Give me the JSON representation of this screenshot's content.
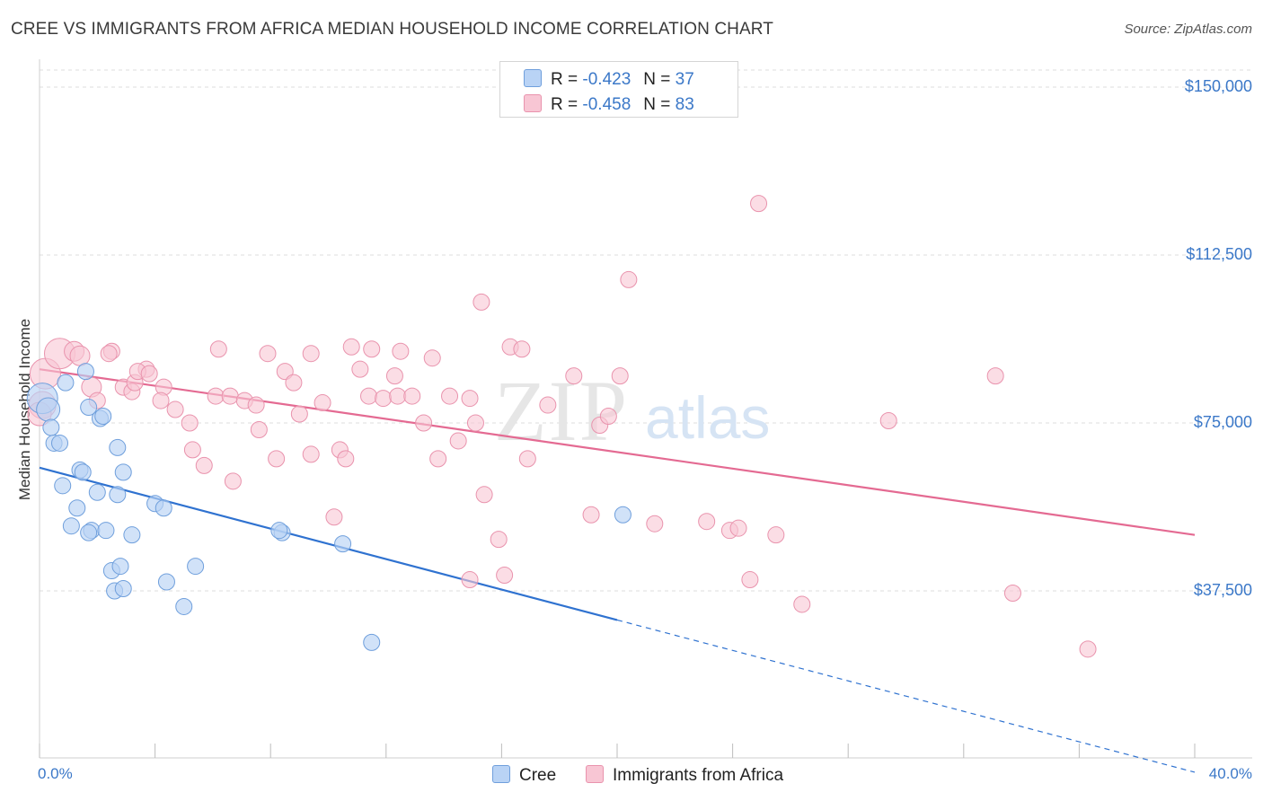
{
  "header": {
    "title": "CREE VS IMMIGRANTS FROM AFRICA MEDIAN HOUSEHOLD INCOME CORRELATION CHART",
    "source": "Source: ZipAtlas.com"
  },
  "legend": {
    "rows": [
      {
        "r_label": "R =",
        "r_value": "-0.423",
        "n_label": "N =",
        "n_value": "37"
      },
      {
        "r_label": "R =",
        "r_value": "-0.458",
        "n_label": "N =",
        "n_value": "83"
      }
    ],
    "bottom": [
      "Cree",
      "Immigrants from Africa"
    ]
  },
  "watermark": {
    "zip": "ZIP",
    "atlas": "atlas"
  },
  "colors": {
    "cree_fill": "#b9d3f5",
    "cree_stroke": "#6f9fdc",
    "cree_line": "#2f72d0",
    "africa_fill": "#f8c6d4",
    "africa_stroke": "#e993ad",
    "africa_line": "#e46a92",
    "axis_text": "#3b78c8",
    "grid": "#dedede"
  },
  "chart_data": {
    "type": "scatter",
    "title": "CREE VS IMMIGRANTS FROM AFRICA MEDIAN HOUSEHOLD INCOME CORRELATION CHART",
    "xlabel": "",
    "ylabel": "Median Household Income",
    "xlim": [
      0,
      40
    ],
    "ylim": [
      0,
      150000
    ],
    "x_tick_labels": [
      "0.0%",
      "40.0%"
    ],
    "y_ticks": [
      37500,
      75000,
      112500,
      150000
    ],
    "y_tick_labels": [
      "$37,500",
      "$75,000",
      "$112,500",
      "$150,000"
    ],
    "legend_position": "top-center",
    "series": [
      {
        "name": "Cree",
        "R": -0.423,
        "N": 37,
        "trend": {
          "x_solid": [
            0,
            20
          ],
          "y_solid": [
            65000,
            31000
          ],
          "x_dashed": [
            20,
            40
          ],
          "y_dashed": [
            31000,
            -3000
          ]
        },
        "points": [
          [
            0.1,
            80500
          ],
          [
            0.3,
            78000
          ],
          [
            0.4,
            74000
          ],
          [
            0.5,
            70500
          ],
          [
            0.7,
            70500
          ],
          [
            0.9,
            84000
          ],
          [
            1.6,
            86500
          ],
          [
            1.7,
            78500
          ],
          [
            0.8,
            61000
          ],
          [
            1.4,
            64500
          ],
          [
            1.5,
            64000
          ],
          [
            2.1,
            76000
          ],
          [
            2.2,
            76500
          ],
          [
            2.7,
            59000
          ],
          [
            2.0,
            59500
          ],
          [
            1.3,
            56000
          ],
          [
            2.7,
            69500
          ],
          [
            2.9,
            64000
          ],
          [
            1.8,
            51000
          ],
          [
            1.1,
            52000
          ],
          [
            2.3,
            51000
          ],
          [
            1.7,
            50500
          ],
          [
            4.0,
            57000
          ],
          [
            4.3,
            56000
          ],
          [
            3.2,
            50000
          ],
          [
            8.4,
            50500
          ],
          [
            8.3,
            51000
          ],
          [
            10.5,
            48000
          ],
          [
            20.2,
            54500
          ],
          [
            2.5,
            42000
          ],
          [
            2.8,
            43000
          ],
          [
            5.4,
            43000
          ],
          [
            2.6,
            37500
          ],
          [
            2.9,
            38000
          ],
          [
            4.4,
            39500
          ],
          [
            5.0,
            34000
          ],
          [
            11.5,
            26000
          ]
        ],
        "sizes": [
          34,
          26,
          18,
          18,
          18,
          18,
          18,
          18,
          18,
          18,
          18,
          18,
          18,
          18,
          18,
          18,
          18,
          18,
          18,
          18,
          18,
          18,
          18,
          18,
          18,
          18,
          18,
          18,
          18,
          18,
          18,
          18,
          18,
          18,
          18,
          18,
          18
        ]
      },
      {
        "name": "Immigrants from Africa",
        "R": -0.458,
        "N": 83,
        "trend": {
          "x_solid": [
            0,
            40
          ],
          "y_solid": [
            87000,
            50000
          ]
        },
        "points": [
          [
            0.1,
            79000
          ],
          [
            0.2,
            86000
          ],
          [
            0.7,
            90500
          ],
          [
            1.2,
            91000
          ],
          [
            1.4,
            90000
          ],
          [
            2.5,
            91000
          ],
          [
            2.4,
            90500
          ],
          [
            1.8,
            83000
          ],
          [
            2.0,
            80000
          ],
          [
            2.9,
            83000
          ],
          [
            3.2,
            82000
          ],
          [
            3.3,
            84000
          ],
          [
            3.7,
            87000
          ],
          [
            3.4,
            86500
          ],
          [
            3.8,
            86000
          ],
          [
            4.3,
            83000
          ],
          [
            4.2,
            80000
          ],
          [
            4.7,
            78000
          ],
          [
            5.2,
            75000
          ],
          [
            5.3,
            69000
          ],
          [
            5.7,
            65500
          ],
          [
            6.1,
            81000
          ],
          [
            6.6,
            81000
          ],
          [
            6.7,
            62000
          ],
          [
            6.2,
            91500
          ],
          [
            7.1,
            80000
          ],
          [
            7.5,
            79000
          ],
          [
            7.6,
            73500
          ],
          [
            7.9,
            90500
          ],
          [
            8.2,
            67000
          ],
          [
            8.5,
            86500
          ],
          [
            8.8,
            84000
          ],
          [
            9.0,
            77000
          ],
          [
            9.4,
            68000
          ],
          [
            9.4,
            90500
          ],
          [
            9.8,
            79500
          ],
          [
            10.2,
            54000
          ],
          [
            10.4,
            69000
          ],
          [
            10.6,
            67000
          ],
          [
            10.8,
            92000
          ],
          [
            11.1,
            87000
          ],
          [
            11.4,
            81000
          ],
          [
            11.5,
            91500
          ],
          [
            11.9,
            80500
          ],
          [
            12.3,
            85500
          ],
          [
            12.4,
            81000
          ],
          [
            12.5,
            91000
          ],
          [
            12.9,
            81000
          ],
          [
            13.3,
            75000
          ],
          [
            13.6,
            89500
          ],
          [
            13.8,
            67000
          ],
          [
            14.2,
            81000
          ],
          [
            14.5,
            71000
          ],
          [
            14.9,
            80500
          ],
          [
            14.9,
            40000
          ],
          [
            15.1,
            75000
          ],
          [
            15.3,
            102000
          ],
          [
            15.4,
            59000
          ],
          [
            15.9,
            49000
          ],
          [
            16.1,
            41000
          ],
          [
            16.3,
            92000
          ],
          [
            16.7,
            91500
          ],
          [
            16.9,
            67000
          ],
          [
            17.6,
            79000
          ],
          [
            18.5,
            85500
          ],
          [
            19.1,
            54500
          ],
          [
            19.4,
            74500
          ],
          [
            19.7,
            76500
          ],
          [
            20.1,
            85500
          ],
          [
            20.4,
            107000
          ],
          [
            21.3,
            52500
          ],
          [
            23.1,
            53000
          ],
          [
            23.9,
            51000
          ],
          [
            24.2,
            51500
          ],
          [
            24.6,
            40000
          ],
          [
            24.9,
            124000
          ],
          [
            25.5,
            50000
          ],
          [
            26.4,
            34500
          ],
          [
            29.4,
            75500
          ],
          [
            33.1,
            85500
          ],
          [
            33.7,
            37000
          ],
          [
            36.3,
            24500
          ],
          [
            0.0,
            77000
          ]
        ],
        "sizes": [
          30,
          34,
          34,
          22,
          22,
          18,
          18,
          22,
          18,
          18,
          18,
          18,
          18,
          18,
          18,
          18,
          18,
          18,
          18,
          18,
          18,
          18,
          18,
          18,
          18,
          18,
          18,
          18,
          18,
          18,
          18,
          18,
          18,
          18,
          18,
          18,
          18,
          18,
          18,
          18,
          18,
          18,
          18,
          18,
          18,
          18,
          18,
          18,
          18,
          18,
          18,
          18,
          18,
          18,
          18,
          18,
          18,
          18,
          18,
          18,
          18,
          18,
          18,
          18,
          18,
          18,
          18,
          18,
          18,
          18,
          18,
          18,
          18,
          18,
          18,
          18,
          18,
          18,
          18,
          18,
          18,
          18,
          26
        ]
      }
    ]
  }
}
